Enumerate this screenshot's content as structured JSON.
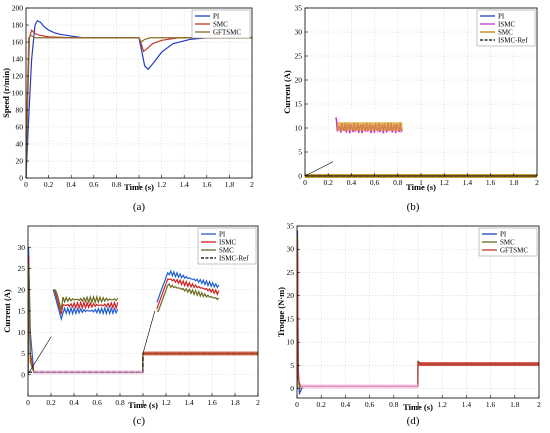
{
  "chart_data": [
    {
      "id": "a",
      "type": "line",
      "caption": "(a)",
      "xlabel": "Time (s)",
      "ylabel": "Speed (r/min)",
      "xlim": [
        0,
        2
      ],
      "ylim": [
        0,
        200
      ],
      "xticks": [
        0,
        0.2,
        0.4,
        0.6,
        0.8,
        1,
        1.2,
        1.4,
        1.6,
        1.8,
        2
      ],
      "yticks": [
        0,
        20,
        40,
        60,
        80,
        100,
        120,
        140,
        160,
        180,
        200
      ],
      "tick_labels_x": [
        "0",
        "0.2",
        "0.4",
        "0.6",
        "0.8",
        "1",
        "1.2",
        "1.4",
        "1.6",
        "1.8",
        "2"
      ],
      "tick_labels_y": [
        "0",
        "20",
        "40",
        "60",
        "80",
        "100",
        "120",
        "140",
        "160",
        "180",
        "200"
      ],
      "grid": true,
      "legend": "top-right",
      "series": [
        {
          "name": "PI",
          "color": "#1f3fbf",
          "x": [
            0,
            0.02,
            0.05,
            0.08,
            0.1,
            0.13,
            0.16,
            0.2,
            0.25,
            0.3,
            0.4,
            0.5,
            0.6,
            0.8,
            0.99,
            1.0,
            1.02,
            1.05,
            1.08,
            1.12,
            1.2,
            1.3,
            1.45,
            1.6,
            2.0
          ],
          "y": [
            0,
            60,
            140,
            180,
            185,
            183,
            178,
            174,
            171,
            169,
            167,
            165,
            165,
            165,
            165,
            165,
            152,
            132,
            128,
            134,
            148,
            158,
            163,
            165,
            165
          ]
        },
        {
          "name": "SMC",
          "color": "#c0392b",
          "x": [
            0,
            0.015,
            0.03,
            0.05,
            0.08,
            0.12,
            0.2,
            0.4,
            0.99,
            1.0,
            1.02,
            1.04,
            1.07,
            1.12,
            1.2,
            1.35,
            2.0
          ],
          "y": [
            0,
            90,
            165,
            174,
            170,
            168,
            166,
            165,
            165,
            165,
            158,
            149,
            152,
            158,
            162,
            165,
            165
          ]
        },
        {
          "name": "GFTSMC",
          "color": "#8b6c2a",
          "x": [
            0,
            0.012,
            0.025,
            0.04,
            0.08,
            0.2,
            0.99,
            1.0,
            1.02,
            1.05,
            1.1,
            2.0
          ],
          "y": [
            0,
            100,
            165,
            168,
            165,
            165,
            165,
            165,
            160,
            163,
            165,
            165
          ]
        }
      ]
    },
    {
      "id": "b",
      "type": "line",
      "caption": "(b)",
      "xlabel": "Time (s)",
      "ylabel": "Current (A)",
      "xlim": [
        0,
        2
      ],
      "ylim": [
        0,
        35
      ],
      "xticks": [
        0,
        0.2,
        0.4,
        0.6,
        0.8,
        1,
        1.2,
        1.4,
        1.6,
        1.8,
        2
      ],
      "yticks": [
        0,
        5,
        10,
        15,
        20,
        25,
        30,
        35
      ],
      "tick_labels_x": [
        "0",
        "0.2",
        "0.4",
        "0.6",
        "0.8",
        "1",
        "1.2",
        "1.4",
        "1.6",
        "1.8",
        "2"
      ],
      "tick_labels_y": [
        "0",
        "5",
        "10",
        "15",
        "20",
        "25",
        "30",
        "35"
      ],
      "grid": true,
      "legend": "top-right",
      "series": [
        {
          "name": "PI",
          "color": "#1f3fbf",
          "x": [
            0,
            2
          ],
          "y": [
            0,
            0
          ]
        },
        {
          "name": "ISMC",
          "color": "#cc33cc",
          "x": [
            0,
            2
          ],
          "y": [
            0,
            0
          ]
        },
        {
          "name": "SMC",
          "color": "#b8860b",
          "x": [
            0,
            2
          ],
          "y": [
            0,
            0
          ]
        },
        {
          "name": "ISMC-Ref",
          "color": "#000000",
          "dashed": true,
          "x": [
            0,
            2
          ],
          "y": [
            0,
            0
          ]
        }
      ],
      "inset": true
    },
    {
      "id": "c",
      "type": "line",
      "caption": "(c)",
      "xlabel": "Time (s)",
      "ylabel": "Current (A)",
      "xlim": [
        0,
        2
      ],
      "ylim": [
        -5,
        35
      ],
      "xticks": [
        0,
        0.2,
        0.4,
        0.6,
        0.8,
        1,
        1.2,
        1.4,
        1.6,
        1.8,
        2
      ],
      "yticks": [
        0,
        5,
        10,
        15,
        20,
        25,
        30
      ],
      "tick_labels_x": [
        "0",
        "0.2",
        "0.4",
        "0.6",
        "0.8",
        "1",
        "1.2",
        "1.4",
        "1.6",
        "1.8",
        "2"
      ],
      "tick_labels_y": [
        "0",
        "5",
        "10",
        "15",
        "20",
        "25",
        "30"
      ],
      "grid": true,
      "legend": "top-right",
      "series": [
        {
          "name": "PI",
          "color": "#1f5fd0",
          "x": [
            0,
            0.005,
            0.02,
            0.05,
            0.2,
            0.999,
            1.0,
            2.0
          ],
          "y": [
            0,
            30,
            10,
            0.6,
            0.6,
            0.6,
            5,
            5
          ]
        },
        {
          "name": "ISMC",
          "color": "#d01f1f",
          "x": [
            0,
            0.005,
            0.02,
            0.05,
            0.2,
            0.999,
            1.0,
            2.0
          ],
          "y": [
            0,
            28,
            5,
            0.6,
            0.6,
            0.6,
            5,
            5
          ]
        },
        {
          "name": "SMC",
          "color": "#6b6b1f",
          "x": [
            0,
            0.005,
            0.02,
            0.05,
            0.2,
            0.999,
            1.0,
            2.0
          ],
          "y": [
            0,
            26,
            3,
            0.6,
            0.6,
            0.6,
            5,
            5
          ]
        },
        {
          "name": "ISMC-Ref",
          "color": "#000000",
          "dashed": true,
          "x": [
            0,
            0.999,
            1.0,
            2.0
          ],
          "y": [
            0.6,
            0.6,
            5,
            5
          ]
        }
      ],
      "insets": 2
    },
    {
      "id": "d",
      "type": "line",
      "caption": "(d)",
      "xlabel": "Time (s)",
      "ylabel": "Troque (N·m)",
      "xlim": [
        0,
        2
      ],
      "ylim": [
        -2,
        35
      ],
      "xticks": [
        0,
        0.2,
        0.4,
        0.6,
        0.8,
        1,
        1.2,
        1.4,
        1.6,
        1.8,
        2
      ],
      "yticks": [
        0,
        5,
        10,
        15,
        20,
        25,
        30,
        35
      ],
      "tick_labels_x": [
        "0",
        "0.2",
        "0.4",
        "0.6",
        "0.8",
        "1",
        "1.2",
        "1.4",
        "1.6",
        "1.8",
        "2"
      ],
      "tick_labels_y": [
        "0",
        "5",
        "10",
        "15",
        "20",
        "25",
        "30",
        "35"
      ],
      "grid": true,
      "legend": "top-right",
      "series": [
        {
          "name": "PI",
          "color": "#1f3fbf",
          "x": [
            0,
            0.004,
            0.01,
            0.02,
            0.05,
            0.999,
            1.0,
            1.01,
            1.03,
            2.0
          ],
          "y": [
            0,
            34,
            5,
            -1,
            0.5,
            0.5,
            6,
            5.5,
            5.3,
            5.3
          ]
        },
        {
          "name": "SMC",
          "color": "#6b6b1f",
          "x": [
            0,
            0.004,
            0.01,
            0.02,
            0.05,
            0.999,
            1.0,
            1.03,
            2.0
          ],
          "y": [
            0,
            33,
            3,
            0,
            0.5,
            0.5,
            5.8,
            5.3,
            5.3
          ]
        },
        {
          "name": "GFTSMC",
          "color": "#c0392b",
          "x": [
            0,
            0.004,
            0.01,
            0.03,
            0.999,
            1.0,
            1.03,
            2.0
          ],
          "y": [
            0,
            32,
            2,
            0.5,
            0.5,
            5.6,
            5.3,
            5.3
          ]
        }
      ]
    }
  ]
}
